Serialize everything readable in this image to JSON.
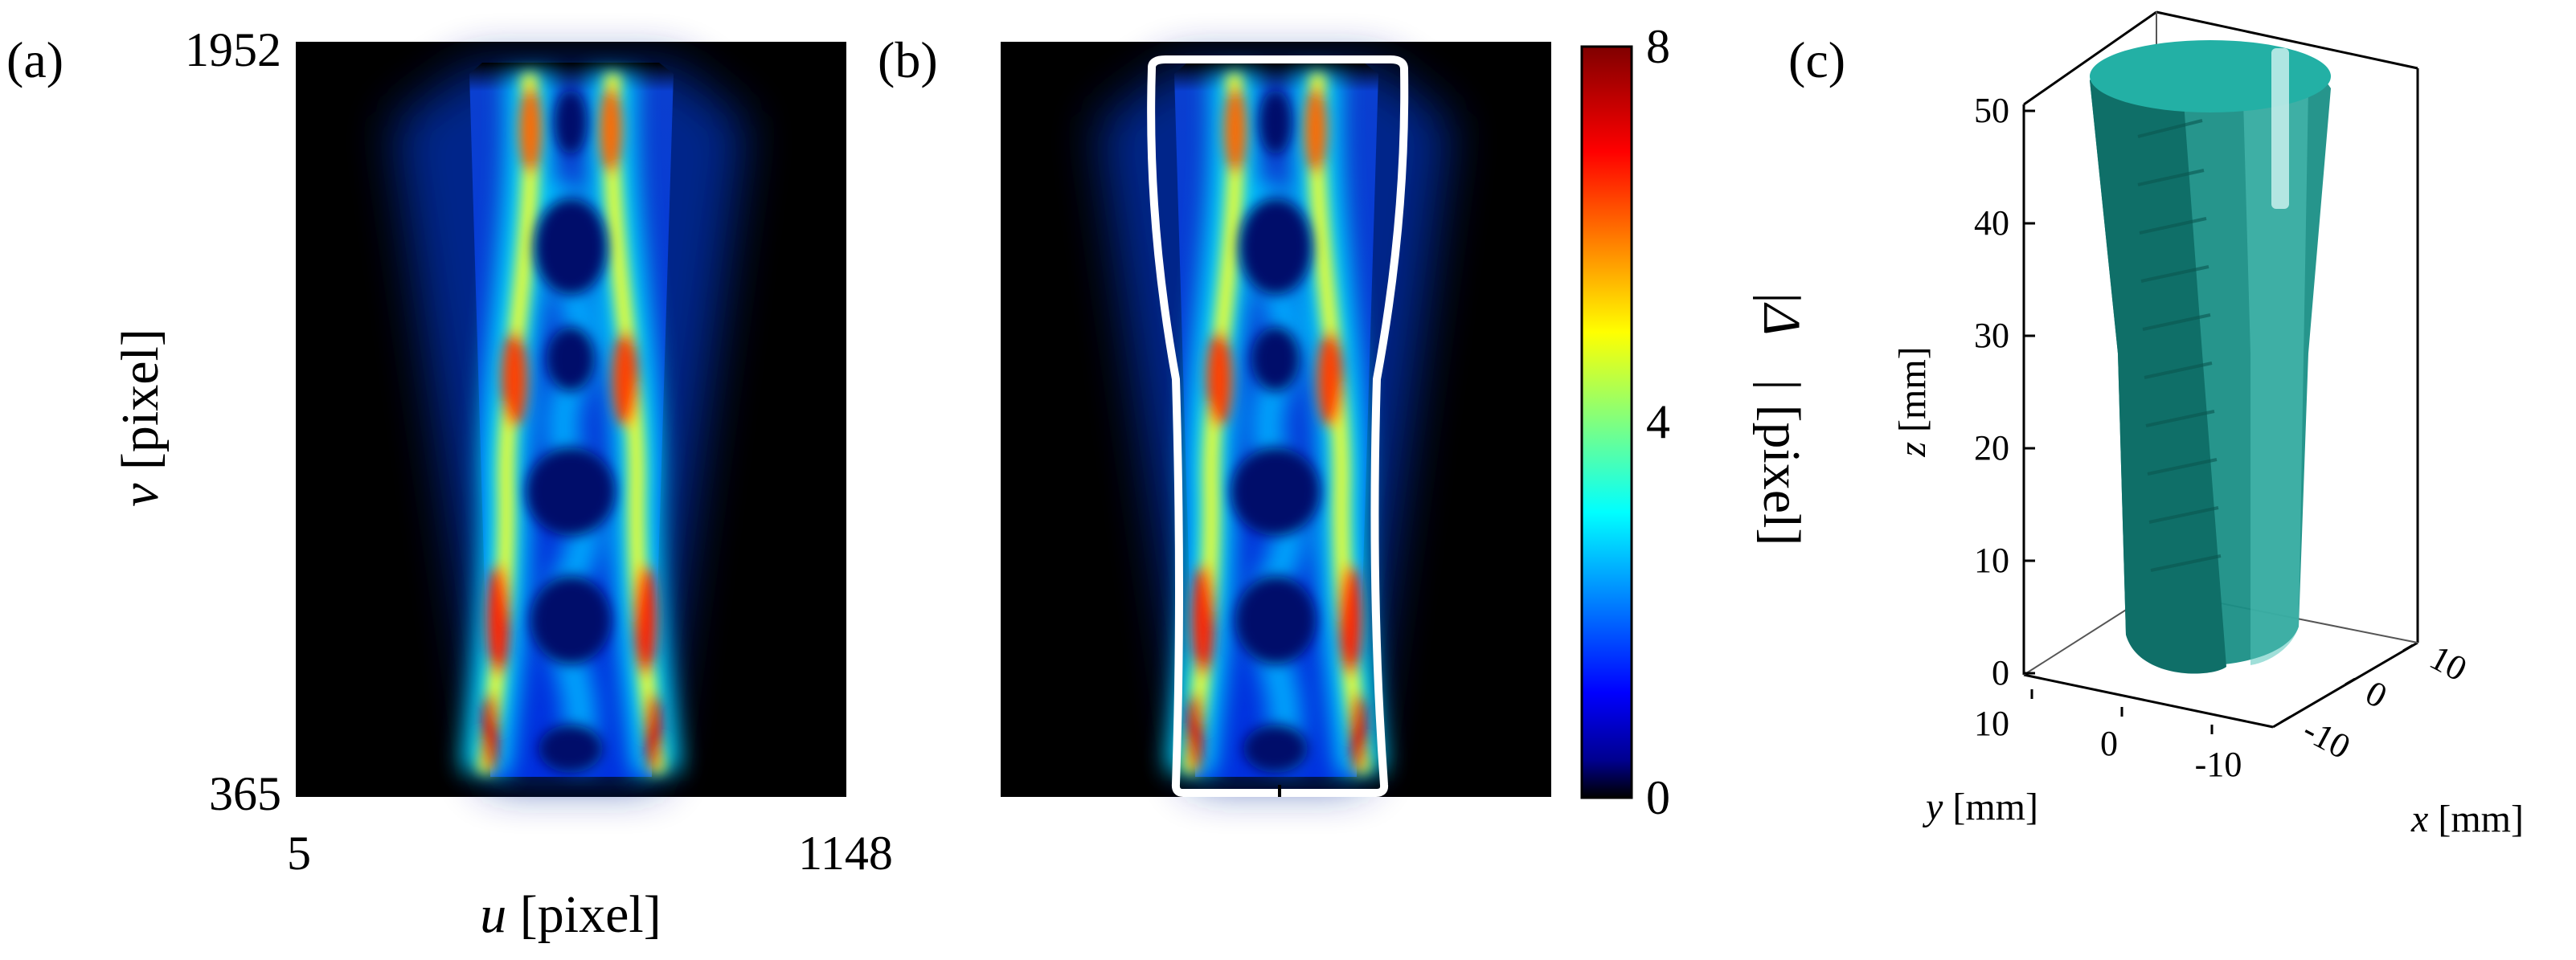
{
  "panels": {
    "a": {
      "label": "(a)",
      "u_ticks": [
        "5",
        "1148"
      ],
      "v_ticks": [
        "365",
        "1952"
      ],
      "xlabel_sym": "u",
      "xlabel_unit": " [pixel]",
      "ylabel_sym": "v",
      "ylabel_unit": " [pixel]"
    },
    "b": {
      "label": "(b)"
    },
    "colorbar": {
      "ticks": [
        "0",
        "4",
        "8"
      ],
      "range": [
        0,
        8
      ],
      "label_sym": "|Δ⃗|",
      "label_unit": " [pixel]",
      "colormap": "jet"
    },
    "c": {
      "label": "(c)",
      "z_ticks": [
        "0",
        "10",
        "20",
        "30",
        "40",
        "50"
      ],
      "y_ticks": [
        "10",
        "0",
        "-10"
      ],
      "x_ticks": [
        "10",
        "0",
        "-10"
      ],
      "zlabel_sym": "z",
      "zlabel_unit": " [mm]",
      "ylabel_sym": "y",
      "ylabel_unit": " [mm]",
      "xlabel_sym": "x",
      "xlabel_unit": " [mm]",
      "surface_color": "#1f9e94"
    }
  }
}
